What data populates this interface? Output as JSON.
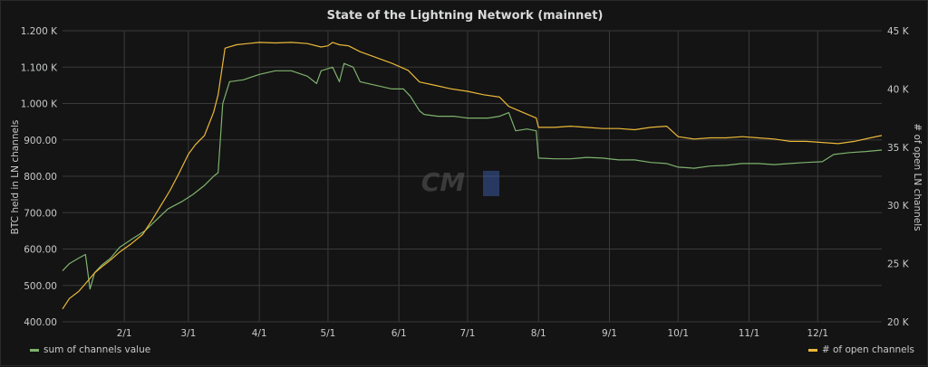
{
  "panel": {
    "title": "State of the Lightning Network (mainnet)",
    "watermark": "CM"
  },
  "colors": {
    "background": "#141414",
    "grid": "#3a3a3a",
    "green": "#7eb26d",
    "yellow": "#eab839",
    "text": "#c8c9ca"
  },
  "chart_data": {
    "type": "line",
    "title": "State of the Lightning Network (mainnet)",
    "xlabel": "",
    "x_ticks": [
      "2/1",
      "3/1",
      "4/1",
      "5/1",
      "6/1",
      "7/1",
      "8/1",
      "9/1",
      "10/1",
      "11/1",
      "12/1"
    ],
    "x_range": [
      "1/5",
      "12/29"
    ],
    "y_left": {
      "label": "BTC held in LN channels",
      "range": [
        400,
        1200
      ],
      "tick_labels": [
        "400.00",
        "500.00",
        "600.00",
        "700.00",
        "800.00",
        "900.00",
        "1.000 K",
        "1.100 K",
        "1.200 K"
      ],
      "tick_values": [
        400,
        500,
        600,
        700,
        800,
        900,
        1000,
        1100,
        1200
      ]
    },
    "y_right": {
      "label": "# of open LN channels",
      "range": [
        20000,
        45000
      ],
      "tick_labels": [
        "20 K",
        "25 K",
        "30 K",
        "35 K",
        "40 K",
        "45 K"
      ],
      "tick_values": [
        20000,
        25000,
        30000,
        35000,
        40000,
        45000
      ]
    },
    "grid": true,
    "legend": "bottom",
    "series": [
      {
        "name": "sum of channels value",
        "axis": "left",
        "color": "#7eb26d",
        "points": [
          [
            "1/5",
            540
          ],
          [
            "1/8",
            560
          ],
          [
            "1/12",
            575
          ],
          [
            "1/15",
            585
          ],
          [
            "1/17",
            490
          ],
          [
            "1/19",
            535
          ],
          [
            "1/22",
            555
          ],
          [
            "1/26",
            575
          ],
          [
            "1/30",
            605
          ],
          [
            "2/5",
            630
          ],
          [
            "2/10",
            650
          ],
          [
            "2/15",
            680
          ],
          [
            "2/20",
            710
          ],
          [
            "2/26",
            730
          ],
          [
            "3/3",
            750
          ],
          [
            "3/8",
            775
          ],
          [
            "3/12",
            800
          ],
          [
            "3/14",
            810
          ],
          [
            "3/16",
            1000
          ],
          [
            "3/19",
            1060
          ],
          [
            "3/25",
            1065
          ],
          [
            "4/1",
            1080
          ],
          [
            "4/8",
            1090
          ],
          [
            "4/15",
            1090
          ],
          [
            "4/22",
            1075
          ],
          [
            "4/26",
            1055
          ],
          [
            "4/28",
            1090
          ],
          [
            "5/3",
            1100
          ],
          [
            "5/6",
            1060
          ],
          [
            "5/8",
            1110
          ],
          [
            "5/12",
            1100
          ],
          [
            "5/15",
            1060
          ],
          [
            "5/22",
            1050
          ],
          [
            "5/29",
            1040
          ],
          [
            "6/3",
            1040
          ],
          [
            "6/6",
            1020
          ],
          [
            "6/10",
            980
          ],
          [
            "6/12",
            970
          ],
          [
            "6/18",
            965
          ],
          [
            "6/25",
            965
          ],
          [
            "7/1",
            960
          ],
          [
            "7/10",
            960
          ],
          [
            "7/15",
            965
          ],
          [
            "7/19",
            975
          ],
          [
            "7/22",
            925
          ],
          [
            "7/27",
            930
          ],
          [
            "7/31",
            925
          ],
          [
            "8/1",
            850
          ],
          [
            "8/8",
            848
          ],
          [
            "8/15",
            848
          ],
          [
            "8/22",
            852
          ],
          [
            "8/29",
            850
          ],
          [
            "9/5",
            845
          ],
          [
            "9/12",
            845
          ],
          [
            "9/19",
            838
          ],
          [
            "9/26",
            835
          ],
          [
            "10/1",
            825
          ],
          [
            "10/8",
            822
          ],
          [
            "10/15",
            828
          ],
          [
            "10/22",
            830
          ],
          [
            "10/29",
            835
          ],
          [
            "11/5",
            835
          ],
          [
            "11/12",
            832
          ],
          [
            "11/19",
            835
          ],
          [
            "11/26",
            838
          ],
          [
            "12/3",
            840
          ],
          [
            "12/8",
            860
          ],
          [
            "12/15",
            865
          ],
          [
            "12/22",
            868
          ],
          [
            "12/29",
            872
          ]
        ]
      },
      {
        "name": "# of open channels",
        "axis": "right",
        "color": "#eab839",
        "points": [
          [
            "1/5",
            21100
          ],
          [
            "1/8",
            22000
          ],
          [
            "1/12",
            22600
          ],
          [
            "1/16",
            23500
          ],
          [
            "1/19",
            24200
          ],
          [
            "1/22",
            24700
          ],
          [
            "1/26",
            25300
          ],
          [
            "1/30",
            26000
          ],
          [
            "2/4",
            26700
          ],
          [
            "2/9",
            27500
          ],
          [
            "2/13",
            28700
          ],
          [
            "2/17",
            30000
          ],
          [
            "2/21",
            31300
          ],
          [
            "2/25",
            32800
          ],
          [
            "3/1",
            34400
          ],
          [
            "3/4",
            35200
          ],
          [
            "3/8",
            36000
          ],
          [
            "3/12",
            38000
          ],
          [
            "3/14",
            39500
          ],
          [
            "3/17",
            43500
          ],
          [
            "3/22",
            43800
          ],
          [
            "3/27",
            43900
          ],
          [
            "4/1",
            44000
          ],
          [
            "4/8",
            43950
          ],
          [
            "4/15",
            44000
          ],
          [
            "4/22",
            43900
          ],
          [
            "4/28",
            43600
          ],
          [
            "5/1",
            43700
          ],
          [
            "5/3",
            44000
          ],
          [
            "5/6",
            43800
          ],
          [
            "5/10",
            43700
          ],
          [
            "5/15",
            43200
          ],
          [
            "5/22",
            42700
          ],
          [
            "5/29",
            42200
          ],
          [
            "6/5",
            41600
          ],
          [
            "6/10",
            40600
          ],
          [
            "6/17",
            40300
          ],
          [
            "6/24",
            40000
          ],
          [
            "7/1",
            39800
          ],
          [
            "7/8",
            39500
          ],
          [
            "7/15",
            39300
          ],
          [
            "7/19",
            38500
          ],
          [
            "7/25",
            38000
          ],
          [
            "7/31",
            37500
          ],
          [
            "8/1",
            36700
          ],
          [
            "8/8",
            36700
          ],
          [
            "8/15",
            36800
          ],
          [
            "8/22",
            36700
          ],
          [
            "8/29",
            36600
          ],
          [
            "9/5",
            36600
          ],
          [
            "9/12",
            36500
          ],
          [
            "9/19",
            36700
          ],
          [
            "9/26",
            36800
          ],
          [
            "10/1",
            35900
          ],
          [
            "10/8",
            35700
          ],
          [
            "10/15",
            35800
          ],
          [
            "10/22",
            35800
          ],
          [
            "10/29",
            35900
          ],
          [
            "11/5",
            35800
          ],
          [
            "11/12",
            35700
          ],
          [
            "11/19",
            35500
          ],
          [
            "11/26",
            35500
          ],
          [
            "12/3",
            35400
          ],
          [
            "12/10",
            35300
          ],
          [
            "12/17",
            35500
          ],
          [
            "12/24",
            35800
          ],
          [
            "12/29",
            36000
          ]
        ]
      }
    ]
  }
}
